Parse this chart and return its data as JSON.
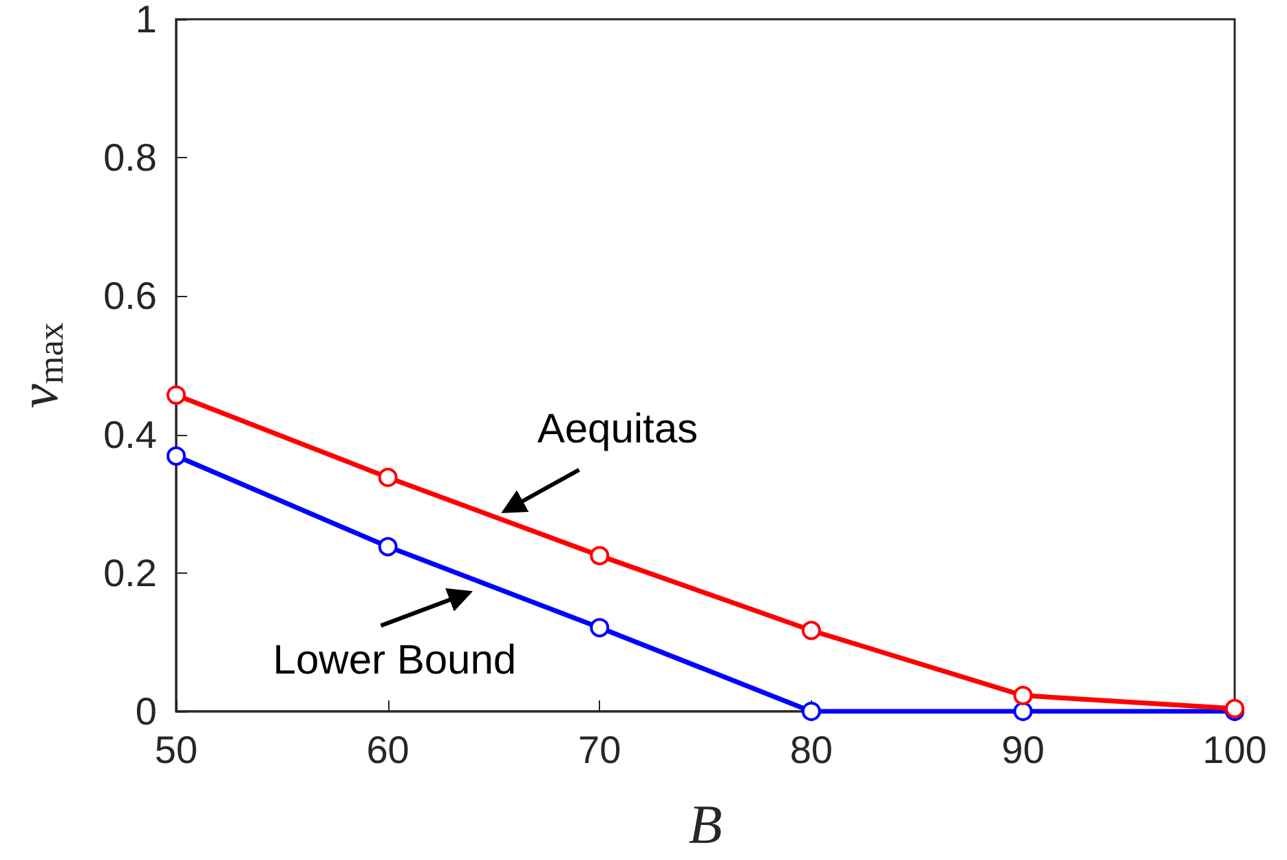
{
  "chart_data": {
    "type": "line",
    "xlabel": "B",
    "ylabel": "v$_{max}$",
    "x": [
      50,
      60,
      70,
      80,
      90,
      100
    ],
    "series": [
      {
        "name": "Aequitas",
        "color": "#ff0000",
        "values": [
          0.457,
          0.338,
          0.225,
          0.117,
          0.023,
          0.004
        ]
      },
      {
        "name": "Lower Bound",
        "color": "#0000ff",
        "values": [
          0.369,
          0.238,
          0.121,
          0,
          0,
          0
        ]
      }
    ],
    "xlim": [
      50,
      100
    ],
    "xticks": [
      50,
      60,
      70,
      80,
      90,
      100
    ],
    "ylim": [
      0,
      1
    ],
    "yticks": [
      0,
      0.2,
      0.4,
      0.6,
      0.8,
      1
    ],
    "grid": false,
    "legend": false,
    "marker": "circle",
    "line_style": "solid"
  }
}
